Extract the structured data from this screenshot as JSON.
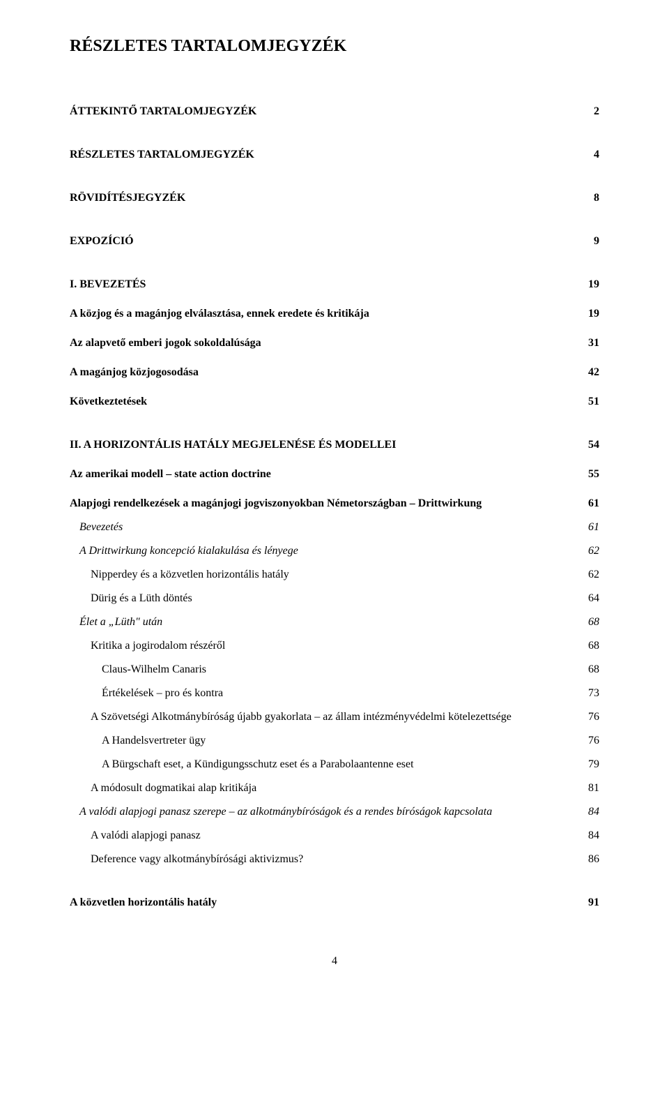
{
  "title": "RÉSZLETES TARTALOMJEGYZÉK",
  "entries": [
    {
      "label": "ÁTTEKINTŐ TARTALOMJEGYZÉK",
      "page": "2",
      "bold": true,
      "italic": false,
      "indent": 0,
      "before": "lg"
    },
    {
      "label": "RÉSZLETES TARTALOMJEGYZÉK",
      "page": "4",
      "bold": true,
      "italic": false,
      "indent": 0,
      "before": "lg"
    },
    {
      "label": "RÖVIDÍTÉSJEGYZÉK",
      "page": "8",
      "bold": true,
      "italic": false,
      "indent": 0,
      "before": "lg"
    },
    {
      "label": "EXPOZÍCIÓ",
      "page": "9",
      "bold": true,
      "italic": false,
      "indent": 0,
      "before": "lg"
    },
    {
      "label": "I. BEVEZETÉS",
      "page": "19",
      "bold": true,
      "italic": false,
      "indent": 0,
      "before": "lg"
    },
    {
      "label": "A közjog és a magánjog elválasztása, ennek eredete és kritikája",
      "page": "19",
      "bold": true,
      "italic": false,
      "indent": 0,
      "before": "md"
    },
    {
      "label": "Az alapvető emberi jogok sokoldalúsága",
      "page": "31",
      "bold": true,
      "italic": false,
      "indent": 0,
      "before": "md"
    },
    {
      "label": "A magánjog közjogosodása",
      "page": "42",
      "bold": true,
      "italic": false,
      "indent": 0,
      "before": "md"
    },
    {
      "label": "Következtetések",
      "page": "51",
      "bold": true,
      "italic": false,
      "indent": 0,
      "before": "md"
    },
    {
      "label": "II. A HORIZONTÁLIS HATÁLY MEGJELENÉSE ÉS MODELLEI",
      "page": "54",
      "bold": true,
      "italic": false,
      "indent": 0,
      "before": "lg"
    },
    {
      "label": "Az amerikai modell – state action doctrine",
      "page": "55",
      "bold": true,
      "italic": false,
      "indent": 0,
      "before": "md"
    },
    {
      "label": "Alapjogi rendelkezések a magánjogi jogviszonyokban Németországban – Drittwirkung",
      "page": "61",
      "bold": true,
      "italic": false,
      "indent": 0,
      "before": "md"
    },
    {
      "label": "Bevezetés",
      "page": "61",
      "bold": false,
      "italic": true,
      "indent": 1,
      "before": "sm"
    },
    {
      "label": "A Drittwirkung koncepció kialakulása és lényege",
      "page": "62",
      "bold": false,
      "italic": true,
      "indent": 1,
      "before": "sm"
    },
    {
      "label": "Nipperdey és a közvetlen horizontális hatály",
      "page": "62",
      "bold": false,
      "italic": false,
      "indent": 2,
      "before": "sm"
    },
    {
      "label": "Dürig és a Lüth döntés",
      "page": "64",
      "bold": false,
      "italic": false,
      "indent": 2,
      "before": "sm"
    },
    {
      "label": "Élet a „Lüth\" után",
      "page": "68",
      "bold": false,
      "italic": true,
      "indent": 1,
      "before": "sm"
    },
    {
      "label": "Kritika a jogirodalom részéről",
      "page": "68",
      "bold": false,
      "italic": false,
      "indent": 2,
      "before": "sm"
    },
    {
      "label": "Claus-Wilhelm Canaris",
      "page": "68",
      "bold": false,
      "italic": false,
      "indent": 3,
      "before": "sm"
    },
    {
      "label": "Értékelések – pro és kontra",
      "page": "73",
      "bold": false,
      "italic": false,
      "indent": 3,
      "before": "sm"
    },
    {
      "label": "A Szövetségi Alkotmánybíróság újabb gyakorlata – az állam intézményvédelmi kötelezettsége",
      "page": "76",
      "bold": false,
      "italic": false,
      "indent": 2,
      "before": "sm"
    },
    {
      "label": "A Handelsvertreter ügy",
      "page": "76",
      "bold": false,
      "italic": false,
      "indent": 3,
      "before": "sm"
    },
    {
      "label": "A Bürgschaft eset, a Kündigungsschutz eset és a Parabolaantenne eset",
      "page": "79",
      "bold": false,
      "italic": false,
      "indent": 3,
      "before": "sm"
    },
    {
      "label": "A módosult dogmatikai alap kritikája",
      "page": "81",
      "bold": false,
      "italic": false,
      "indent": 2,
      "before": "sm"
    },
    {
      "label": "A valódi alapjogi panasz szerepe – az alkotmánybíróságok és a rendes bíróságok kapcsolata",
      "page": "84",
      "bold": false,
      "italic": true,
      "indent": 1,
      "before": "sm"
    },
    {
      "label": "A valódi alapjogi panasz",
      "page": "84",
      "bold": false,
      "italic": false,
      "indent": 2,
      "before": "sm"
    },
    {
      "label": "Deference vagy alkotmánybírósági aktivizmus?",
      "page": "86",
      "bold": false,
      "italic": false,
      "indent": 2,
      "before": "sm"
    },
    {
      "label": "A közvetlen horizontális hatály",
      "page": "91",
      "bold": true,
      "italic": false,
      "indent": 0,
      "before": "lg"
    }
  ],
  "page_number": "4"
}
